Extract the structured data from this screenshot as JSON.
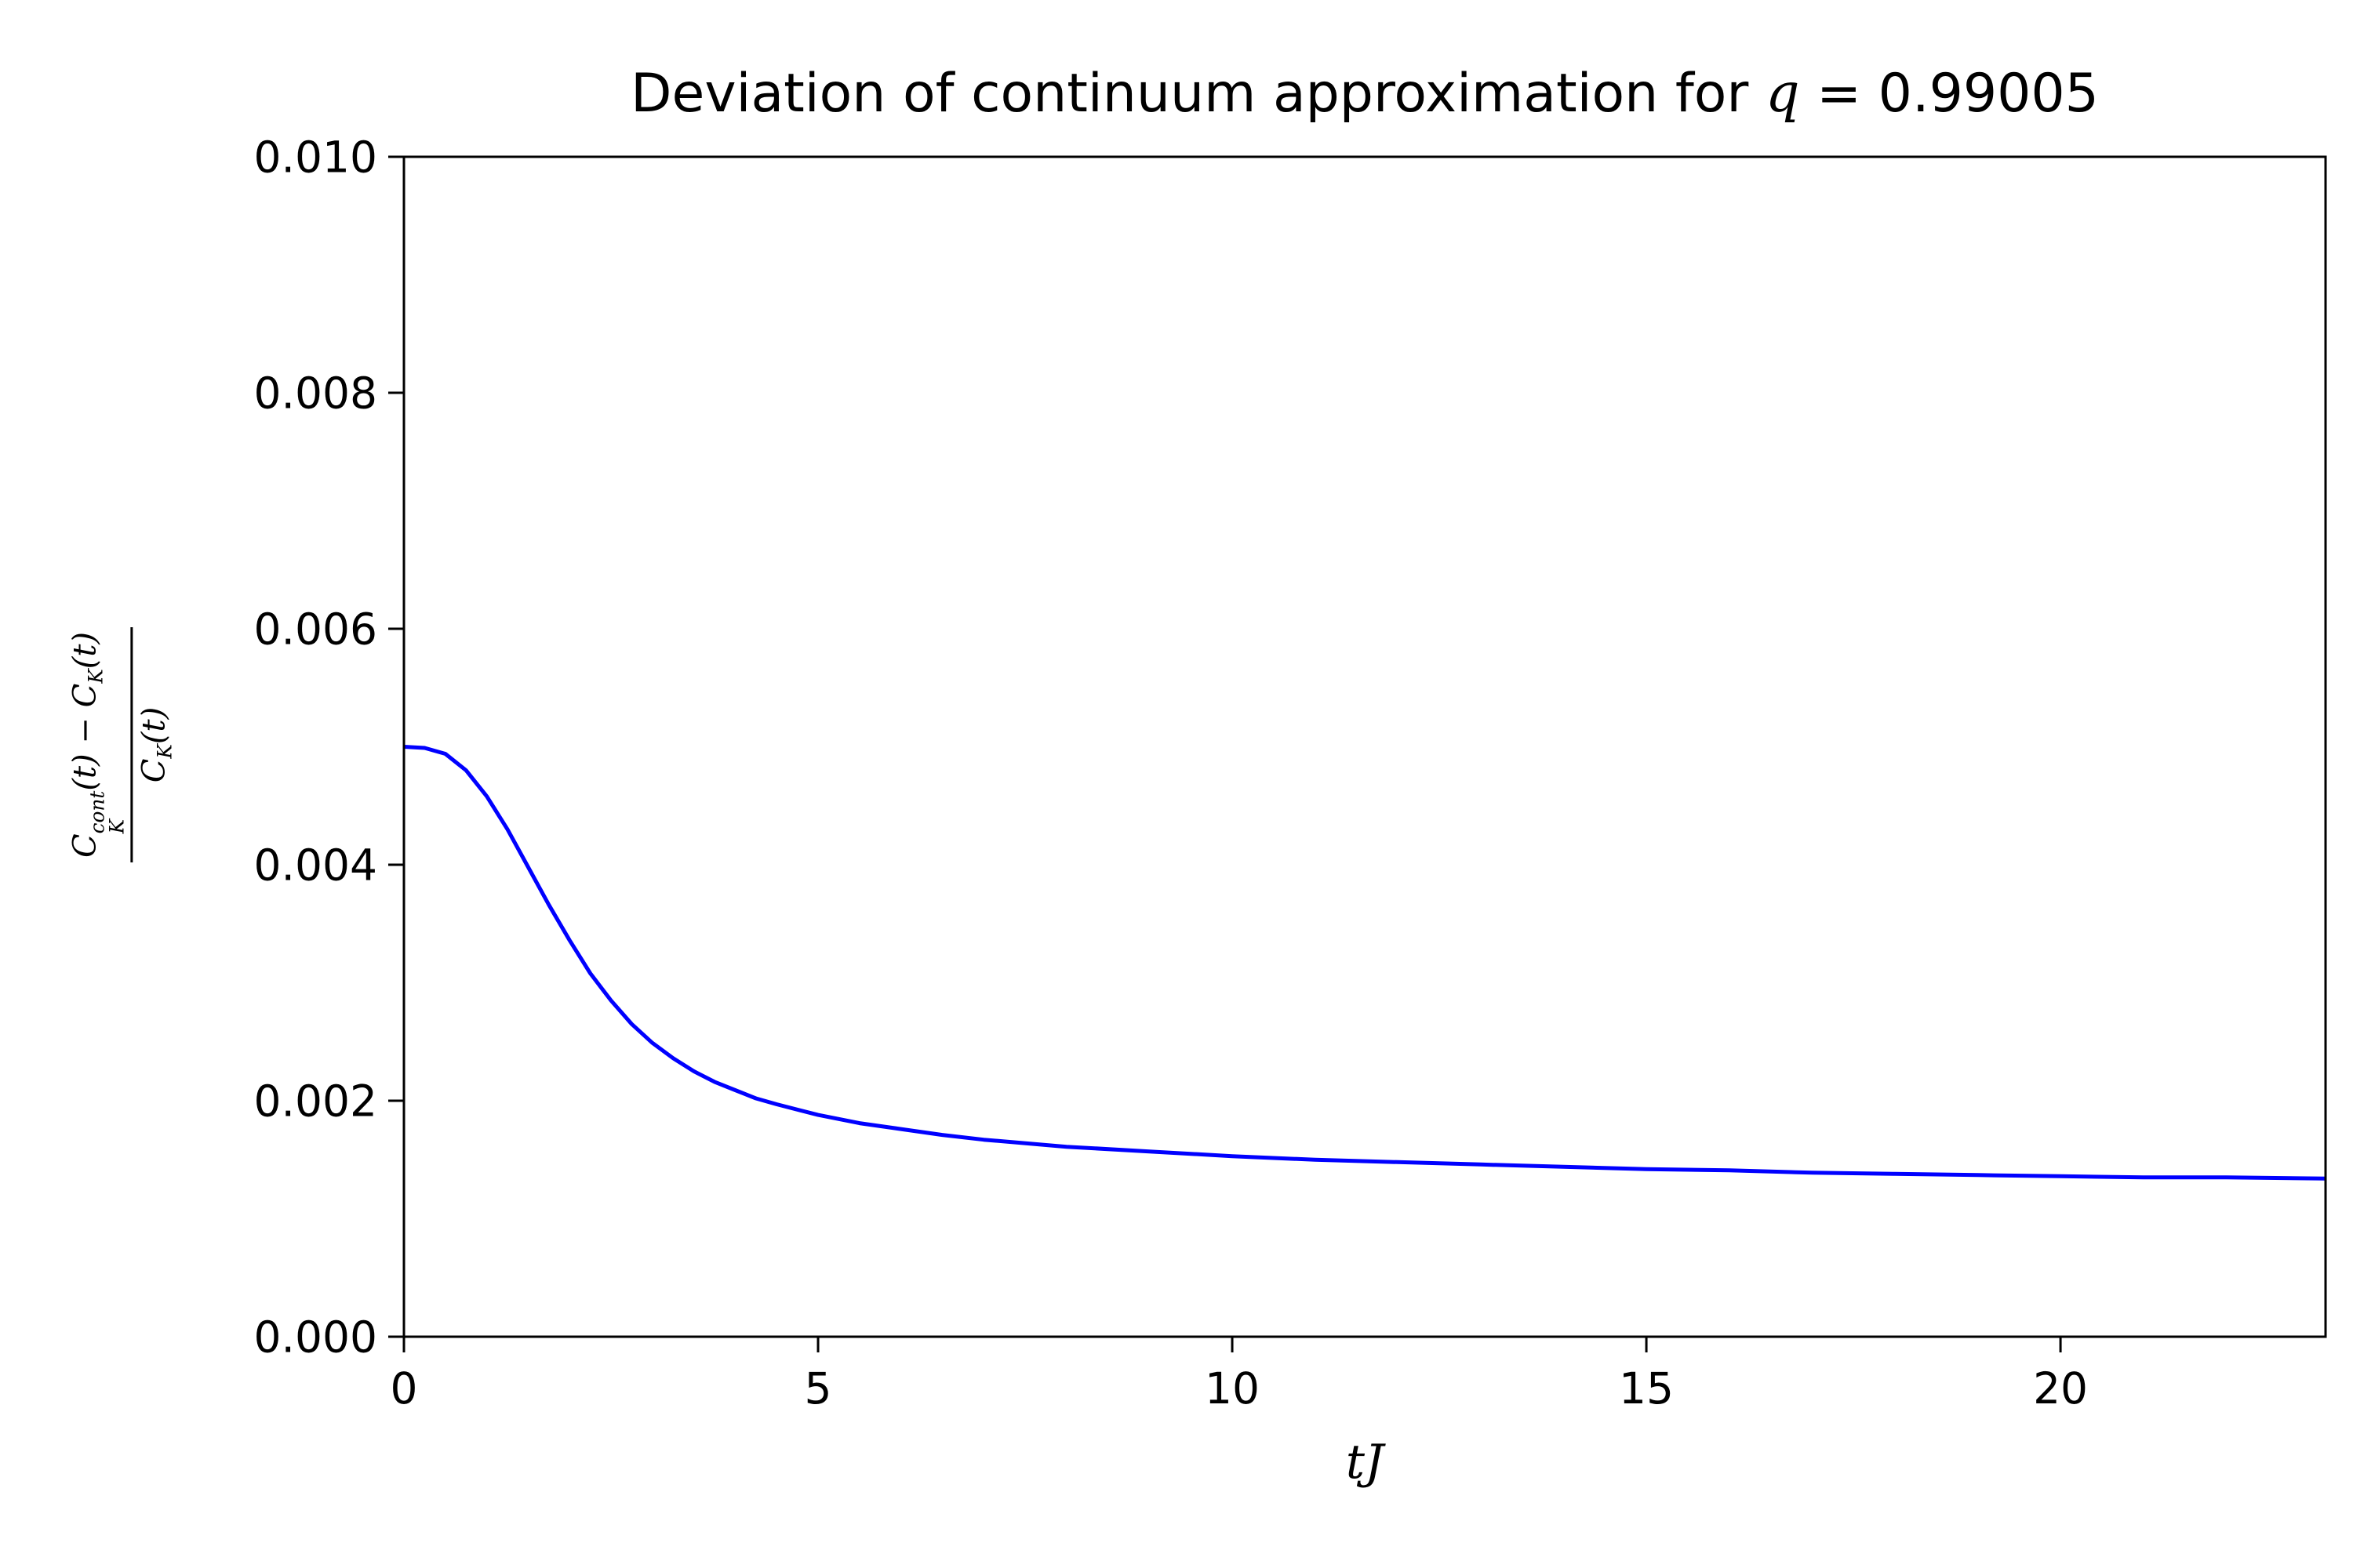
{
  "title": {
    "prefix": "Deviation of continuum approximation for ",
    "q": "q",
    "value": " = 0.99005"
  },
  "xaxis": {
    "label": "tJ"
  },
  "yaxis": {
    "num_c1": "C",
    "num_sup": "cont",
    "num_sub": "K",
    "num_mid": "(t) − C",
    "num_sub2": "K",
    "num_end": "(t)",
    "den_c": "C",
    "den_sub": "K",
    "den_end": "(t)"
  },
  "chart_data": {
    "type": "line",
    "title": "Deviation of continuum approximation for q = 0.99005",
    "xlabel": "tJ",
    "ylabel": "(C_K^cont(t) - C_K(t)) / C_K(t)",
    "xlim": [
      0,
      23.2
    ],
    "ylim": [
      0,
      0.01
    ],
    "xticks": [
      0,
      5,
      10,
      15,
      20
    ],
    "xtick_labels": [
      "0",
      "5",
      "10",
      "15",
      "20"
    ],
    "yticks": [
      0.0,
      0.002,
      0.004,
      0.006,
      0.008,
      0.01
    ],
    "ytick_labels": [
      "0.000",
      "0.002",
      "0.004",
      "0.006",
      "0.008",
      "0.010"
    ],
    "line_color": "#0000ff",
    "grid": false,
    "legend": null,
    "x": [
      0,
      0.25,
      0.5,
      0.75,
      1.0,
      1.25,
      1.5,
      1.75,
      2.0,
      2.25,
      2.5,
      2.75,
      3.0,
      3.25,
      3.5,
      3.75,
      4.0,
      4.25,
      4.5,
      5.0,
      5.5,
      6.0,
      6.5,
      7.0,
      8.0,
      9.0,
      10.0,
      11.0,
      12.0,
      13.0,
      14.0,
      15.0,
      16.0,
      17.0,
      18.0,
      19.0,
      20.0,
      21.0,
      22.0,
      23.2
    ],
    "y": [
      0.005,
      0.00499,
      0.00494,
      0.0048,
      0.00458,
      0.0043,
      0.00398,
      0.00366,
      0.00336,
      0.00308,
      0.00285,
      0.00265,
      0.00249,
      0.00236,
      0.00225,
      0.00216,
      0.00209,
      0.00202,
      0.00197,
      0.00188,
      0.00181,
      0.00176,
      0.00171,
      0.00167,
      0.00161,
      0.00157,
      0.00153,
      0.0015,
      0.00148,
      0.00146,
      0.00144,
      0.00142,
      0.00141,
      0.00139,
      0.00138,
      0.00137,
      0.00136,
      0.00135,
      0.00135,
      0.00134
    ]
  }
}
